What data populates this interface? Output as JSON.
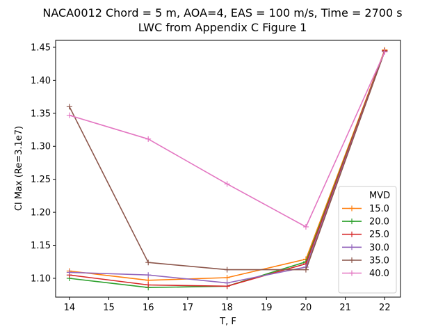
{
  "chart_data": {
    "type": "line",
    "title": "NACA0012 Chord = 5 m, AOA=4, EAS = 100 m/s, Time = 2700 s",
    "subtitle": "LWC from Appendix C Figure 1",
    "xlabel": "T, F",
    "ylabel": "Cl Max (Re=3.1e7)",
    "x": [
      14,
      16,
      18,
      20,
      22
    ],
    "xlim": [
      13.65,
      22.4
    ],
    "ylim": [
      1.0715,
      1.4605
    ],
    "xticks": [
      "14",
      "15",
      "16",
      "17",
      "18",
      "19",
      "20",
      "21",
      "22"
    ],
    "yticks": [
      "1.10",
      "1.15",
      "1.20",
      "1.25",
      "1.30",
      "1.35",
      "1.40",
      "1.45"
    ],
    "grid": false,
    "marker": "+",
    "legend": {
      "title": "MVD",
      "position": "lower right"
    },
    "series": [
      {
        "name": "15.0",
        "color": "#ff7f0e",
        "values": [
          1.111,
          1.097,
          1.101,
          1.129,
          1.446
        ]
      },
      {
        "name": "20.0",
        "color": "#2ca02c",
        "values": [
          1.1,
          1.086,
          1.088,
          1.125,
          1.445
        ]
      },
      {
        "name": "25.0",
        "color": "#d62728",
        "values": [
          1.105,
          1.09,
          1.088,
          1.122,
          1.445
        ]
      },
      {
        "name": "30.0",
        "color": "#9467bd",
        "values": [
          1.109,
          1.105,
          1.093,
          1.117,
          1.444
        ]
      },
      {
        "name": "35.0",
        "color": "#8c564b",
        "values": [
          1.36,
          1.124,
          1.113,
          1.113,
          1.444
        ]
      },
      {
        "name": "40.0",
        "color": "#e377c2",
        "values": [
          1.347,
          1.311,
          1.243,
          1.178,
          1.443
        ]
      }
    ]
  }
}
